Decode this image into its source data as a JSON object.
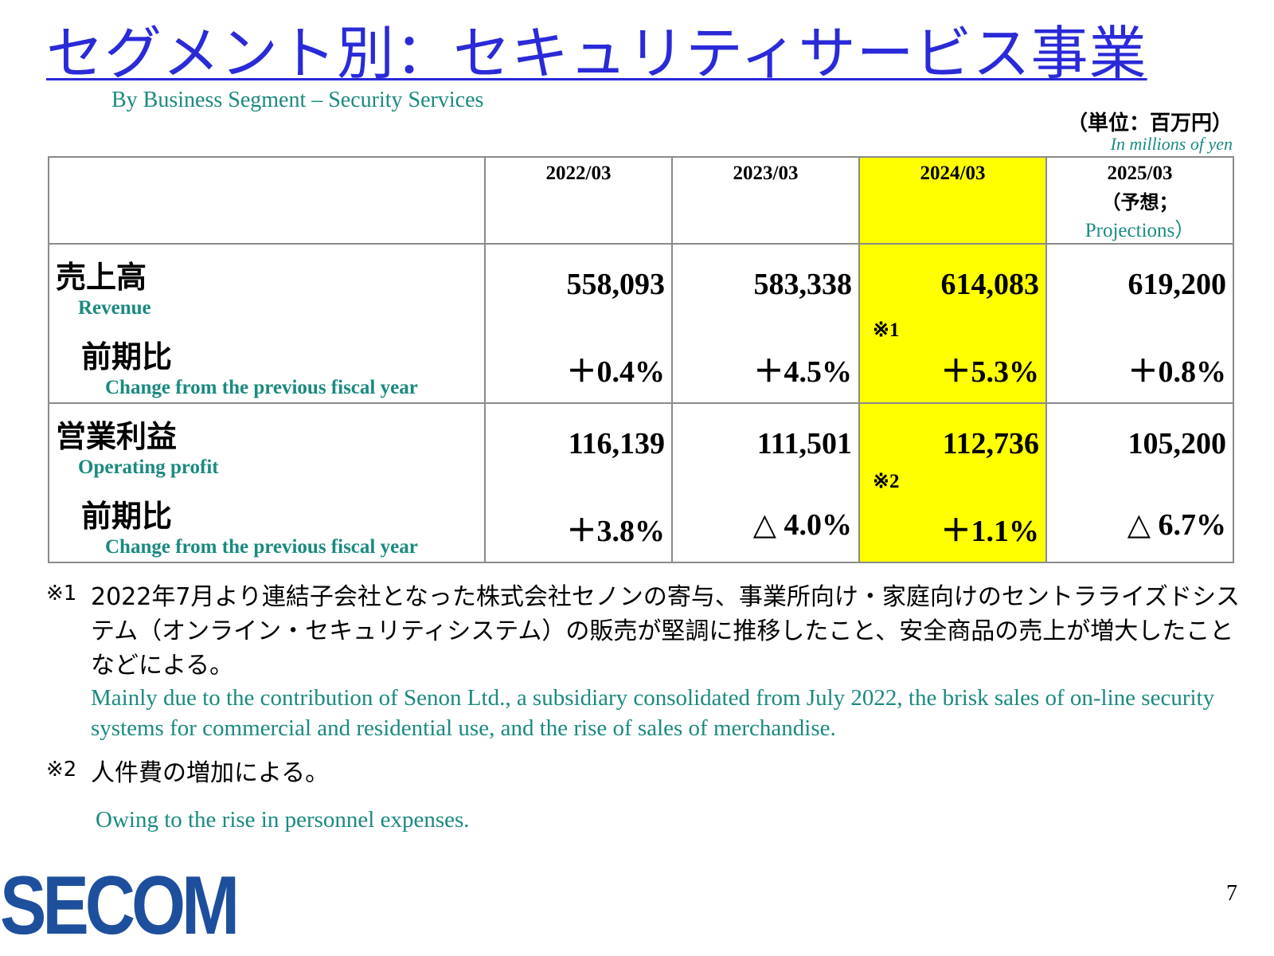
{
  "title": "セグメント別：セキュリティサービス事業",
  "subtitle": "By Business Segment – Security Services",
  "unit": {
    "ja": "（単位：百万円）",
    "en": "In millions of yen"
  },
  "table": {
    "columns": [
      {
        "label": "2022/03"
      },
      {
        "label": "2023/03"
      },
      {
        "label": "2024/03",
        "highlight": true
      },
      {
        "label": "2025/03",
        "sub_ja": "（予想；",
        "sub_en": "Projections）"
      }
    ],
    "rows": [
      {
        "label_ja": "売上高",
        "label_en": "Revenue",
        "change_label_ja": "前期比",
        "change_label_en": "Change from the previous fiscal year",
        "values": [
          "558,093",
          "583,338",
          "614,083",
          "619,200"
        ],
        "changes": [
          "＋0.4%",
          "＋4.5%",
          "＋5.3%",
          "＋0.8%"
        ],
        "note_mark": "※1"
      },
      {
        "label_ja": "営業利益",
        "label_en": "Operating profit",
        "change_label_ja": "前期比",
        "change_label_en": "Change from the previous fiscal year",
        "values": [
          "116,139",
          "111,501",
          "112,736",
          "105,200"
        ],
        "changes": [
          "＋3.8%",
          "△ 4.0%",
          "＋1.1%",
          "△ 6.7%"
        ],
        "note_mark": "※2"
      }
    ]
  },
  "notes": [
    {
      "mark": "※1",
      "ja": "2022年7月より連結子会社となった株式会社セノンの寄与、事業所向け・家庭向けのセントラライズドシステム（オンライン・セキュリティシステム）の販売が堅調に推移したこと、安全商品の売上が増大したことなどによる。",
      "en": "Mainly due to the contribution of Senon Ltd., a subsidiary consolidated from July 2022, the brisk sales of on-line security systems for commercial and residential use, and the rise of sales of merchandise."
    },
    {
      "mark": "※2",
      "ja": "人件費の増加による。",
      "en": "Owing to the rise in personnel expenses."
    }
  ],
  "logo": {
    "text": "SECOM",
    "color": "#1e4f9c",
    "accent": "#2a9bd1"
  },
  "page_number": "7",
  "colors": {
    "title": "#2a2ad8",
    "english": "#1a8a80",
    "highlight": "#ffff00"
  }
}
